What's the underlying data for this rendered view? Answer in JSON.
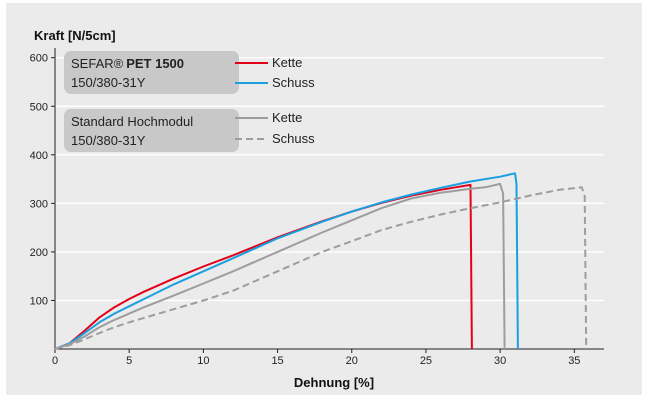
{
  "chart_data": {
    "type": "line",
    "ylabel": "Kraft [N/5cm]",
    "xlabel": "Dehnung [%]",
    "xlim": [
      0,
      37
    ],
    "ylim": [
      0,
      620
    ],
    "xticks": [
      0,
      5,
      10,
      15,
      20,
      25,
      30,
      35
    ],
    "yticks": [
      100,
      200,
      300,
      400,
      500,
      600
    ],
    "grid": "horizontal",
    "legend_placement": "top-left",
    "legend_groups": [
      {
        "product_prefix": "SEFAR®",
        "product_bold": "PET 1500",
        "spec": "150/380-31Y"
      },
      {
        "product_prefix": "Standard Hochmodul",
        "product_bold": "",
        "spec": "150/380-31Y"
      }
    ],
    "series": [
      {
        "name": "Kette",
        "group": 0,
        "color": "#e2001a",
        "style": "solid",
        "x": [
          0,
          1,
          2,
          3,
          4,
          5,
          6,
          8,
          10,
          12,
          15,
          18,
          20,
          22,
          24,
          26,
          27,
          28,
          28,
          28.1
        ],
        "y": [
          0,
          12,
          38,
          65,
          86,
          103,
          118,
          145,
          170,
          193,
          230,
          263,
          283,
          301,
          316,
          328,
          333,
          338,
          335,
          0
        ]
      },
      {
        "name": "Schuss",
        "group": 0,
        "color": "#1a9fe0",
        "style": "solid",
        "x": [
          0,
          1,
          2,
          3,
          4,
          5,
          6,
          8,
          10,
          12,
          15,
          18,
          20,
          22,
          24,
          26,
          28,
          30,
          31,
          31.1,
          31.2
        ],
        "y": [
          0,
          12,
          33,
          55,
          73,
          88,
          103,
          133,
          160,
          187,
          228,
          262,
          283,
          302,
          318,
          332,
          345,
          355,
          362,
          340,
          0
        ]
      },
      {
        "name": "Kette",
        "group": 1,
        "color": "#9d9d9d",
        "style": "solid",
        "x": [
          0,
          1,
          2,
          3,
          4,
          5,
          6,
          8,
          10,
          12,
          15,
          18,
          20,
          22,
          24,
          26,
          28,
          29,
          30,
          30.2,
          30.3
        ],
        "y": [
          0,
          10,
          26,
          45,
          60,
          73,
          86,
          110,
          135,
          160,
          200,
          240,
          265,
          290,
          310,
          322,
          330,
          333,
          340,
          320,
          0
        ]
      },
      {
        "name": "Schuss",
        "group": 1,
        "color": "#9d9d9d",
        "style": "dashed",
        "x": [
          0,
          1,
          2,
          3,
          4,
          5,
          6,
          8,
          10,
          12,
          15,
          18,
          20,
          22,
          24,
          26,
          28,
          30,
          32,
          34,
          35.5,
          35.7,
          35.8
        ],
        "y": [
          0,
          8,
          20,
          33,
          45,
          55,
          64,
          82,
          100,
          120,
          160,
          200,
          222,
          245,
          262,
          277,
          290,
          302,
          316,
          328,
          333,
          315,
          0
        ]
      }
    ]
  }
}
